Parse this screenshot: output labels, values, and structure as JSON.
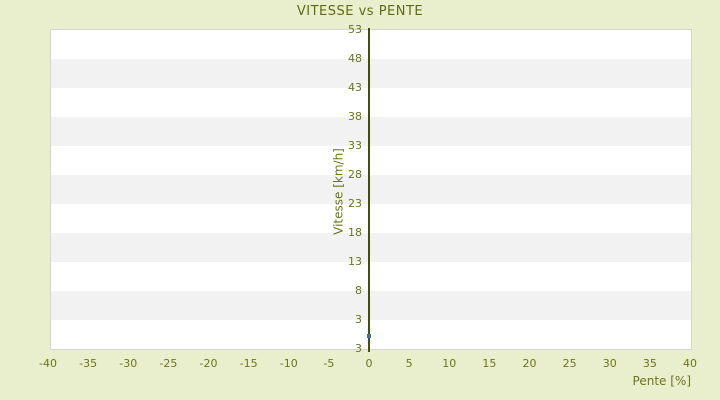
{
  "title": "VITESSE vs PENTE",
  "colors": {
    "background": "#e9eecd",
    "plot_background": "#ffffff",
    "band_alternate": "#f2f2f2",
    "plot_border": "#d5d5d5",
    "label_text": "#6b751c",
    "title_text": "#5f6a15",
    "axis_line": "#454f0a",
    "point": "#3e6d9d"
  },
  "chart_data": {
    "type": "scatter",
    "title": "VITESSE vs PENTE",
    "xlabel": "Pente [%]",
    "ylabel": "Vitesse [km/h]",
    "xlim": [
      -40,
      40
    ],
    "ylim": [
      -2,
      53
    ],
    "x_ticks": [
      -40,
      -35,
      -30,
      -25,
      -20,
      -15,
      -10,
      -5,
      0,
      5,
      10,
      15,
      20,
      25,
      30,
      35,
      40
    ],
    "y_tick_labels": [
      "53",
      "48",
      "43",
      "38",
      "33",
      "28",
      "23",
      "18",
      "13",
      "8",
      "3",
      "3"
    ],
    "y_tick_note": "bottom axis end repeats the label 3 (original renderer quirk); regular ticks run 53 down to 3 in steps of 5",
    "grid": "horizontal alternating white/grey bands, one band per 5 km/h; no vertical gridlines",
    "legend": "none",
    "axis_at_x": 0,
    "series": [
      {
        "name": "vitesse-vs-pente-points",
        "marker": "small square",
        "points": [
          {
            "x": 0,
            "y": 0.3
          }
        ]
      }
    ]
  }
}
